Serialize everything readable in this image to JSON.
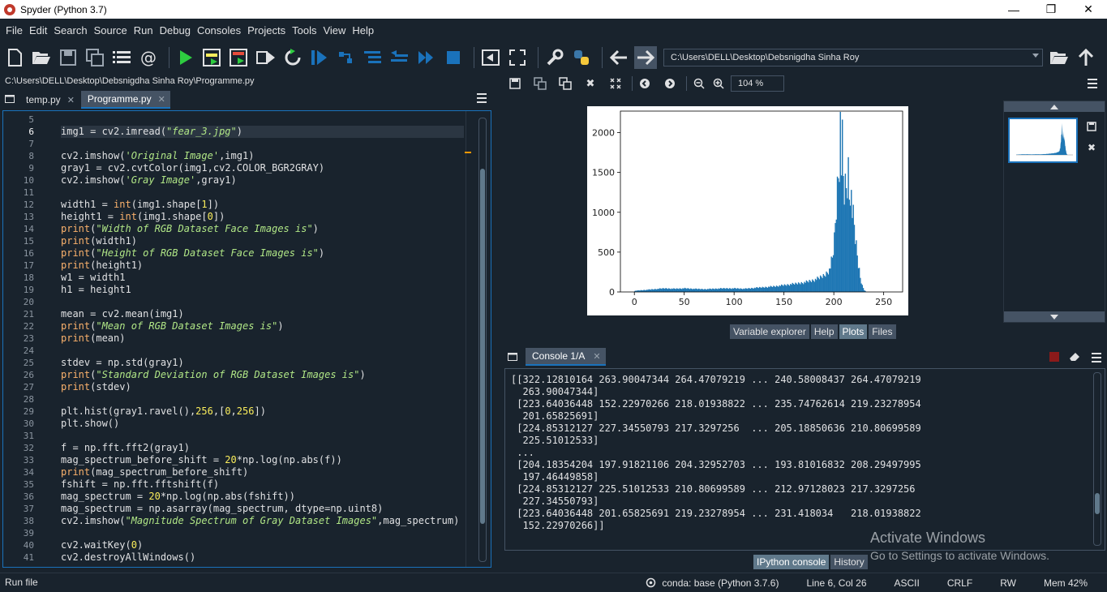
{
  "window": {
    "title": "Spyder (Python 3.7)",
    "minimize": "—",
    "maximize": "❐",
    "close": "✕"
  },
  "menu": [
    "File",
    "Edit",
    "Search",
    "Source",
    "Run",
    "Debug",
    "Consoles",
    "Projects",
    "Tools",
    "View",
    "Help"
  ],
  "toolbar": {
    "working_dir": "C:\\Users\\DELL\\Desktop\\Debsnigdha Sinha Roy"
  },
  "editor": {
    "path": "C:\\Users\\DELL\\Desktop\\Debsnigdha Sinha Roy\\Programme.py",
    "tabs": [
      {
        "label": "temp.py",
        "active": false
      },
      {
        "label": "Programme.py",
        "active": true
      }
    ],
    "current_line": 6,
    "lines": [
      {
        "n": "5",
        "t": ""
      },
      {
        "n": "6",
        "t": "img1 = cv2.imread(\"fear_3.jpg\")"
      },
      {
        "n": "7",
        "t": ""
      },
      {
        "n": "8",
        "t": "cv2.imshow('Original Image',img1)"
      },
      {
        "n": "9",
        "t": "gray1 = cv2.cvtColor(img1,cv2.COLOR_BGR2GRAY)"
      },
      {
        "n": "10",
        "t": "cv2.imshow('Gray Image',gray1)"
      },
      {
        "n": "11",
        "t": ""
      },
      {
        "n": "12",
        "t": "width1 = int(img1.shape[1])"
      },
      {
        "n": "13",
        "t": "height1 = int(img1.shape[0])"
      },
      {
        "n": "14",
        "t": "print(\"Width of RGB Dataset Face Images is\")"
      },
      {
        "n": "15",
        "t": "print(width1)"
      },
      {
        "n": "16",
        "t": "print(\"Height of RGB Dataset Face Images is\")"
      },
      {
        "n": "17",
        "t": "print(height1)"
      },
      {
        "n": "18",
        "t": "w1 = width1"
      },
      {
        "n": "19",
        "t": "h1 = height1"
      },
      {
        "n": "20",
        "t": ""
      },
      {
        "n": "21",
        "t": "mean = cv2.mean(img1)"
      },
      {
        "n": "22",
        "t": "print(\"Mean of RGB Dataset Images is\")"
      },
      {
        "n": "23",
        "t": "print(mean)"
      },
      {
        "n": "24",
        "t": ""
      },
      {
        "n": "25",
        "t": "stdev = np.std(gray1)"
      },
      {
        "n": "26",
        "t": "print(\"Standard Deviation of RGB Dataset Images is\")"
      },
      {
        "n": "27",
        "t": "print(stdev)"
      },
      {
        "n": "28",
        "t": ""
      },
      {
        "n": "29",
        "t": "plt.hist(gray1.ravel(),256,[0,256])"
      },
      {
        "n": "30",
        "t": "plt.show()"
      },
      {
        "n": "31",
        "t": ""
      },
      {
        "n": "32",
        "t": "f = np.fft.fft2(gray1)"
      },
      {
        "n": "33",
        "t": "mag_spectrum_before_shift = 20*np.log(np.abs(f))"
      },
      {
        "n": "34",
        "t": "print(mag_spectrum_before_shift)"
      },
      {
        "n": "35",
        "t": "fshift = np.fft.fftshift(f)"
      },
      {
        "n": "36",
        "t": "mag_spectrum = 20*np.log(np.abs(fshift))"
      },
      {
        "n": "37",
        "t": "mag_spectrum = np.asarray(mag_spectrum, dtype=np.uint8)"
      },
      {
        "n": "38",
        "t": "cv2.imshow(\"Magnitude Spectrum of Gray Dataset Images\",mag_spectrum)"
      },
      {
        "n": "39",
        "t": ""
      },
      {
        "n": "40",
        "t": "cv2.waitKey(0)"
      },
      {
        "n": "41",
        "t": "cv2.destroyAllWindows()"
      }
    ]
  },
  "plots": {
    "zoom": "104 %",
    "tabs": [
      "Variable explorer",
      "Help",
      "Plots",
      "Files"
    ],
    "active_tab": "Plots"
  },
  "chart_data": {
    "type": "bar",
    "title": "",
    "xlabel": "",
    "ylabel": "",
    "xlim": [
      -14,
      269
    ],
    "ylim": [
      0,
      2270
    ],
    "xticks": [
      0,
      50,
      100,
      150,
      200,
      250
    ],
    "yticks": [
      0,
      500,
      1000,
      1500,
      2000
    ],
    "color": "#1f77b4",
    "profile": [
      [
        0,
        15
      ],
      [
        10,
        25
      ],
      [
        20,
        35
      ],
      [
        30,
        45
      ],
      [
        40,
        40
      ],
      [
        50,
        45
      ],
      [
        60,
        38
      ],
      [
        70,
        35
      ],
      [
        80,
        40
      ],
      [
        90,
        45
      ],
      [
        100,
        45
      ],
      [
        110,
        40
      ],
      [
        120,
        50
      ],
      [
        130,
        60
      ],
      [
        140,
        70
      ],
      [
        150,
        85
      ],
      [
        160,
        100
      ],
      [
        170,
        120
      ],
      [
        180,
        150
      ],
      [
        185,
        175
      ],
      [
        190,
        210
      ],
      [
        195,
        280
      ],
      [
        198,
        420
      ],
      [
        200,
        650
      ],
      [
        202,
        1100
      ],
      [
        204,
        1500
      ],
      [
        205,
        1750
      ],
      [
        206,
        2100
      ],
      [
        207,
        1600
      ],
      [
        208,
        1800
      ],
      [
        209,
        1400
      ],
      [
        210,
        1250
      ],
      [
        212,
        1300
      ],
      [
        214,
        1500
      ],
      [
        215,
        1200
      ],
      [
        216,
        1350
      ],
      [
        218,
        1000
      ],
      [
        220,
        800
      ],
      [
        222,
        550
      ],
      [
        224,
        350
      ],
      [
        226,
        180
      ],
      [
        228,
        80
      ],
      [
        230,
        25
      ],
      [
        232,
        0
      ],
      [
        255,
        0
      ]
    ]
  },
  "console": {
    "tab": "Console 1/A",
    "lines": [
      "[[322.12810164 263.90047344 264.47079219 ... 240.58008437 264.47079219",
      "  263.90047344]",
      " [223.64036448 152.22970266 218.01938822 ... 235.74762614 219.23278954",
      "  201.65825691]",
      " [224.85312127 227.34550793 217.3297256  ... 205.18850636 210.80699589",
      "  225.51012533]",
      " ...",
      " [204.18354204 197.91821106 204.32952703 ... 193.81016832 208.29497995",
      "  197.46449858]",
      " [224.85312127 225.51012533 210.80699589 ... 212.97128023 217.3297256",
      "  227.34550793]",
      " [223.64036448 201.65825691 219.23278954 ... 231.418034   218.01938822",
      "  152.22970266]]"
    ],
    "bottom_tabs": [
      "IPython console",
      "History"
    ],
    "active_bottom_tab": "IPython console"
  },
  "watermark": {
    "line1": "Activate Windows",
    "line2": "Go to Settings to activate Windows."
  },
  "status": {
    "left": "Run file",
    "env": "conda: base (Python 3.7.6)",
    "position": "Line 6, Col 26",
    "encoding": "ASCII",
    "eol": "CRLF",
    "mode": "RW",
    "memory": "Mem 42%"
  }
}
